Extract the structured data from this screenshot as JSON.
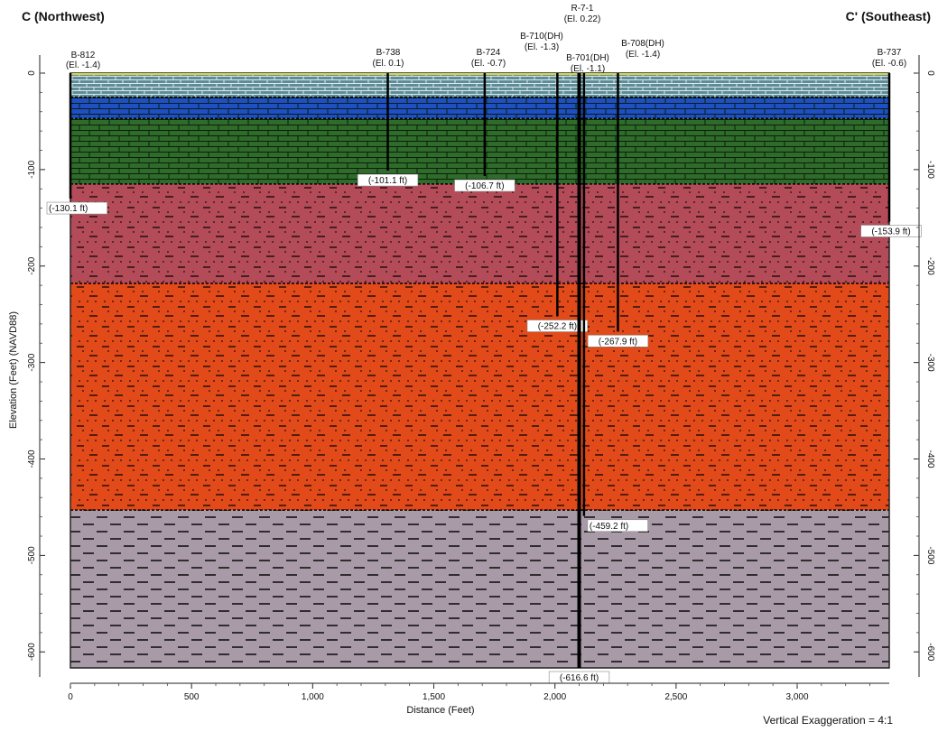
{
  "title_left": "C (Northwest)",
  "title_right": "C' (Southeast)",
  "y_axis_label": "Elevation (Feet) (NAVD88)",
  "x_axis_label": "Distance (Feet)",
  "vertical_exaggeration": "Vertical Exaggeration = 4:1",
  "x_ticks": [
    {
      "value": 0,
      "label": "0"
    },
    {
      "value": 500,
      "label": "500"
    },
    {
      "value": 1000,
      "label": "1,000"
    },
    {
      "value": 1500,
      "label": "1,500"
    },
    {
      "value": 2000,
      "label": "2,000"
    },
    {
      "value": 2500,
      "label": "2,500"
    },
    {
      "value": 3000,
      "label": "3,000"
    }
  ],
  "y_ticks": [
    {
      "value": 0,
      "label": "0"
    },
    {
      "value": -100,
      "label": "-100"
    },
    {
      "value": -200,
      "label": "-200"
    },
    {
      "value": -300,
      "label": "-300"
    },
    {
      "value": -400,
      "label": "-400"
    },
    {
      "value": -500,
      "label": "-500"
    },
    {
      "value": -600,
      "label": "-600"
    }
  ],
  "section_extent": {
    "x_max": 3380,
    "y_bottom": -616.6
  },
  "layers": [
    {
      "name": "layer-1",
      "top": 0,
      "bottom": -25,
      "color": "#5f8d96",
      "pattern": "brick-light"
    },
    {
      "name": "layer-2",
      "top": -25,
      "bottom": -47,
      "color": "#1f4fc4",
      "pattern": "brick-dark"
    },
    {
      "name": "layer-3",
      "top": -47,
      "bottom": -115,
      "color": "#2f6b2a",
      "pattern": "brick-dark"
    },
    {
      "name": "layer-4",
      "top": -115,
      "bottom": -218,
      "color": "#b34b58",
      "pattern": "dots-dash"
    },
    {
      "name": "layer-5",
      "top": -218,
      "bottom": -453,
      "color": "#e24a19",
      "pattern": "dots-dash"
    },
    {
      "name": "layer-6",
      "top": -453,
      "bottom": -616.6,
      "color": "#a99aa8",
      "pattern": "dash"
    }
  ],
  "borings": [
    {
      "id": "B-812",
      "elev": "(El. -1.4)",
      "x": 0,
      "depth": -130.1,
      "depth_label": "(-130.1 ft)",
      "label_side": "right"
    },
    {
      "id": "B-738",
      "elev": "(El. 0.1)",
      "x": 1310,
      "depth": -101.1,
      "depth_label": "(-101.1 ft)",
      "label_side": "center"
    },
    {
      "id": "B-724",
      "elev": "(El. -0.7)",
      "x": 1710,
      "depth": -106.7,
      "depth_label": "(-106.7 ft)",
      "label_side": "center"
    },
    {
      "id": "B-710(DH)",
      "elev": "(El. -1.3)",
      "x": 2010,
      "depth": -252.2,
      "depth_label": "(-252.2 ft)",
      "label_side": "center"
    },
    {
      "id": "B-701(DH)",
      "elev": "(El. -1.1)",
      "x": 2100,
      "depth": -616.6,
      "depth_label": "(-616.6 ft)",
      "label_side": "center"
    },
    {
      "id": "R-7-1",
      "elev": "(El. 0.22)",
      "x": 2120,
      "depth": -459.2,
      "depth_label": "(-459.2 ft)",
      "label_side": "right"
    },
    {
      "id": "B-708(DH)",
      "elev": "(El. -1.4)",
      "x": 2260,
      "depth": -267.9,
      "depth_label": "(-267.9 ft)",
      "label_side": "center"
    },
    {
      "id": "B-737",
      "elev": "(El. -0.6)",
      "x": 3380,
      "depth": -153.9,
      "depth_label": "(-153.9 ft)",
      "label_side": "center"
    }
  ]
}
